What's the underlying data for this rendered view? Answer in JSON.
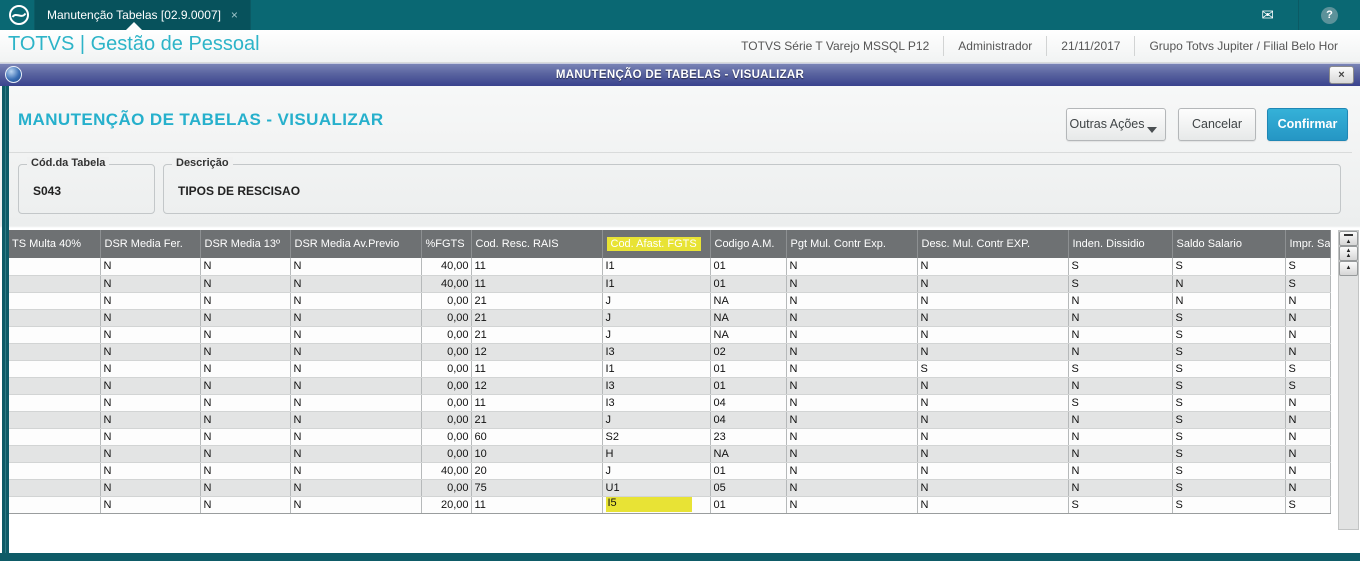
{
  "top_bar": {
    "tab_label": "Manutenção Tabelas [02.9.0007]",
    "tab_close": "×",
    "mail_icon": "✉",
    "help_icon": "?"
  },
  "app_header": {
    "title": "TOTVS | Gestão de Pessoal",
    "info": [
      "TOTVS Série T Varejo MSSQL P12",
      "Administrador",
      "21/11/2017",
      "Grupo Totvs Jupiter / Filial Belo Hor"
    ]
  },
  "dialog": {
    "title_bar_text": "MANUTENÇÃO DE TABELAS - VISUALIZAR",
    "close_label": "×",
    "heading": "MANUTENÇÃO DE TABELAS - VISUALIZAR",
    "buttons": {
      "other_actions": "Outras Ações",
      "cancel": "Cancelar",
      "confirm": "Confirmar"
    },
    "fields": {
      "table_code": {
        "label": "Cód.da Tabela",
        "value": "S043"
      },
      "description": {
        "label": "Descrição",
        "value": "TIPOS DE RESCISAO"
      }
    },
    "grid": {
      "columns": [
        "TS Multa 40%",
        "DSR Media Fer.",
        "DSR Media 13º",
        "DSR Media Av.Previo",
        "%FGTS",
        "Cod. Resc. RAIS",
        "Cod. Afast. FGTS",
        "Codigo A.M.",
        "Pgt Mul. Contr Exp.",
        "Desc. Mul. Contr EXP.",
        "Inden. Dissidio",
        "Saldo Salario",
        "Impr. Sacad"
      ],
      "numeric_column_index": 4,
      "highlighted_column_index": 6,
      "highlighted_cell": {
        "row_index": 14,
        "col_index": 6
      },
      "rows": [
        [
          "",
          "N",
          "N",
          "N",
          "40,00",
          "11",
          "I1",
          "01",
          "N",
          "N",
          "S",
          "S",
          "S"
        ],
        [
          "",
          "N",
          "N",
          "N",
          "40,00",
          "11",
          "I1",
          "01",
          "N",
          "N",
          "S",
          "N",
          "S"
        ],
        [
          "",
          "N",
          "N",
          "N",
          "0,00",
          "21",
          "J",
          "NA",
          "N",
          "N",
          "N",
          "N",
          "N"
        ],
        [
          "",
          "N",
          "N",
          "N",
          "0,00",
          "21",
          "J",
          "NA",
          "N",
          "N",
          "N",
          "S",
          "N"
        ],
        [
          "",
          "N",
          "N",
          "N",
          "0,00",
          "21",
          "J",
          "NA",
          "N",
          "N",
          "N",
          "S",
          "N"
        ],
        [
          "",
          "N",
          "N",
          "N",
          "0,00",
          "12",
          "I3",
          "02",
          "N",
          "N",
          "N",
          "S",
          "N"
        ],
        [
          "",
          "N",
          "N",
          "N",
          "0,00",
          "11",
          "I1",
          "01",
          "N",
          "S",
          "S",
          "S",
          "S"
        ],
        [
          "",
          "N",
          "N",
          "N",
          "0,00",
          "12",
          "I3",
          "01",
          "N",
          "N",
          "N",
          "S",
          "S"
        ],
        [
          "",
          "N",
          "N",
          "N",
          "0,00",
          "11",
          "I3",
          "04",
          "N",
          "N",
          "S",
          "S",
          "N"
        ],
        [
          "",
          "N",
          "N",
          "N",
          "0,00",
          "21",
          "J",
          "04",
          "N",
          "N",
          "N",
          "S",
          "N"
        ],
        [
          "",
          "N",
          "N",
          "N",
          "0,00",
          "60",
          "S2",
          "23",
          "N",
          "N",
          "N",
          "S",
          "N"
        ],
        [
          "",
          "N",
          "N",
          "N",
          "0,00",
          "10",
          "H",
          "NA",
          "N",
          "N",
          "N",
          "S",
          "N"
        ],
        [
          "",
          "N",
          "N",
          "N",
          "40,00",
          "20",
          "J",
          "01",
          "N",
          "N",
          "N",
          "S",
          "N"
        ],
        [
          "",
          "N",
          "N",
          "N",
          "0,00",
          "75",
          "U1",
          "05",
          "N",
          "N",
          "N",
          "S",
          "N"
        ],
        [
          "",
          "N",
          "N",
          "N",
          "20,00",
          "11",
          "I5",
          "01",
          "N",
          "N",
          "S",
          "S",
          "S"
        ]
      ]
    }
  },
  "colors": {
    "top_bar_teal": "#0a6873",
    "brand_cyan": "#2db4c8",
    "title_bar_navy": "#3a438e",
    "confirm_button": "#2fa7cd",
    "grid_header_gray": "#6e7173",
    "highlight_yellow": "#e8e335",
    "dialog_border_teal": "#0e5b67"
  }
}
